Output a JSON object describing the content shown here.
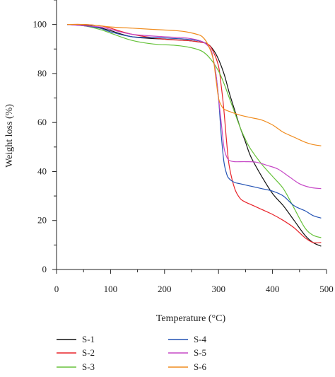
{
  "chart_data": {
    "type": "line",
    "title": "",
    "xlabel": "Temperature (°C)",
    "ylabel": "Weight loss (%)",
    "xlim": [
      0,
      500
    ],
    "ylim": [
      0,
      110
    ],
    "xticks": [
      0,
      100,
      200,
      300,
      400,
      500
    ],
    "yticks": [
      0,
      20,
      40,
      60,
      80,
      100
    ],
    "grid": false,
    "legend_position": "bottom",
    "series": [
      {
        "name": "S-1",
        "color": "#111111",
        "x": [
          20,
          50,
          70,
          100,
          140,
          200,
          240,
          260,
          280,
          295,
          310,
          320,
          330,
          340,
          350,
          360,
          380,
          400,
          420,
          440,
          460,
          475,
          490
        ],
        "y": [
          100,
          99.8,
          99.2,
          97.5,
          95,
          94,
          93.5,
          93,
          92,
          88,
          80,
          72,
          65,
          58,
          52,
          46,
          38,
          31,
          26,
          20,
          14,
          11,
          9.5
        ]
      },
      {
        "name": "S-2",
        "color": "#e8232a",
        "x": [
          20,
          50,
          80,
          100,
          140,
          200,
          240,
          260,
          280,
          290,
          300,
          305,
          310,
          315,
          320,
          330,
          340,
          350,
          360,
          380,
          400,
          420,
          440,
          460,
          475,
          490
        ],
        "y": [
          100,
          100,
          99.5,
          98.5,
          96,
          94,
          93.5,
          93,
          92,
          89,
          83,
          75,
          65,
          52,
          42,
          33,
          29,
          27.5,
          26.5,
          24.5,
          22.5,
          20,
          17,
          13,
          11,
          11
        ]
      },
      {
        "name": "S-3",
        "color": "#66c23a",
        "x": [
          20,
          50,
          80,
          100,
          140,
          180,
          220,
          250,
          270,
          285,
          300,
          310,
          320,
          330,
          340,
          350,
          360,
          380,
          400,
          420,
          440,
          460,
          475,
          490
        ],
        "y": [
          100,
          99.5,
          98,
          96.5,
          93.5,
          92,
          91.5,
          90.5,
          89,
          86,
          81,
          76,
          70,
          64,
          58,
          53,
          49,
          43,
          38,
          33,
          25,
          17,
          14,
          13
        ]
      },
      {
        "name": "S-4",
        "color": "#2352b4",
        "x": [
          20,
          50,
          80,
          100,
          140,
          200,
          240,
          270,
          285,
          290,
          295,
          300,
          305,
          310,
          315,
          320,
          330,
          340,
          360,
          380,
          400,
          420,
          440,
          460,
          475,
          490
        ],
        "y": [
          100,
          99.5,
          98.5,
          97,
          95,
          94.5,
          94,
          93,
          90,
          86,
          80,
          70,
          55,
          44,
          39,
          37,
          35.5,
          35,
          34,
          33,
          32,
          30,
          26,
          24,
          22,
          21
        ]
      },
      {
        "name": "S-5",
        "color": "#c648c6",
        "x": [
          20,
          50,
          80,
          100,
          140,
          200,
          240,
          270,
          285,
          290,
          295,
          300,
          305,
          310,
          315,
          320,
          330,
          350,
          370,
          390,
          410,
          430,
          450,
          470,
          490
        ],
        "y": [
          100,
          99.5,
          99,
          98,
          96,
          95,
          94.5,
          93,
          90,
          86,
          80,
          70,
          60,
          50,
          46,
          44.5,
          44,
          44,
          43.8,
          42.5,
          41,
          38,
          35,
          33.5,
          33
        ]
      },
      {
        "name": "S-6",
        "color": "#f08c1e",
        "x": [
          20,
          50,
          80,
          100,
          140,
          180,
          220,
          240,
          260,
          270,
          280,
          290,
          295,
          300,
          305,
          310,
          320,
          340,
          360,
          380,
          400,
          410,
          420,
          440,
          460,
          475,
          490
        ],
        "y": [
          100,
          100,
          99.5,
          99,
          98.5,
          98,
          97.5,
          97,
          96,
          95,
          92,
          86,
          78,
          70,
          67,
          65.5,
          64.5,
          63,
          62,
          61,
          59,
          57.5,
          56,
          54,
          52,
          51,
          50.5
        ]
      }
    ]
  }
}
